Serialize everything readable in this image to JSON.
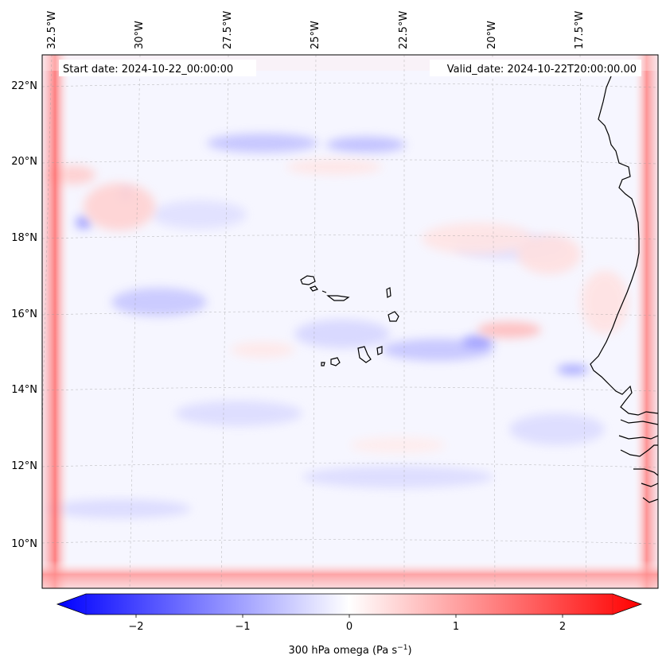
{
  "header": {
    "start_date": "Start date: 2024-10-22_00:00:00",
    "valid_date": "Valid_date: 2024-10-22T20:00:00.00"
  },
  "map": {
    "lon_ticks": [
      "32.5°W",
      "30°W",
      "27.5°W",
      "25°W",
      "22.5°W",
      "20°W",
      "17.5°W"
    ],
    "lat_ticks": [
      "22°N",
      "20°N",
      "18°N",
      "16°N",
      "14°N",
      "12°N",
      "10°N"
    ],
    "field_colors": {
      "negative": "#0000ff",
      "zero": "#ffffff",
      "positive": "#ff0000"
    }
  },
  "colorbar": {
    "ticks": [
      "−2",
      "−1",
      "0",
      "1",
      "2"
    ],
    "label_main": "300 hPa omega (Pa s",
    "label_sup": "−1",
    "label_close": ")",
    "vmin": -2.6,
    "vmax": 2.6
  }
}
